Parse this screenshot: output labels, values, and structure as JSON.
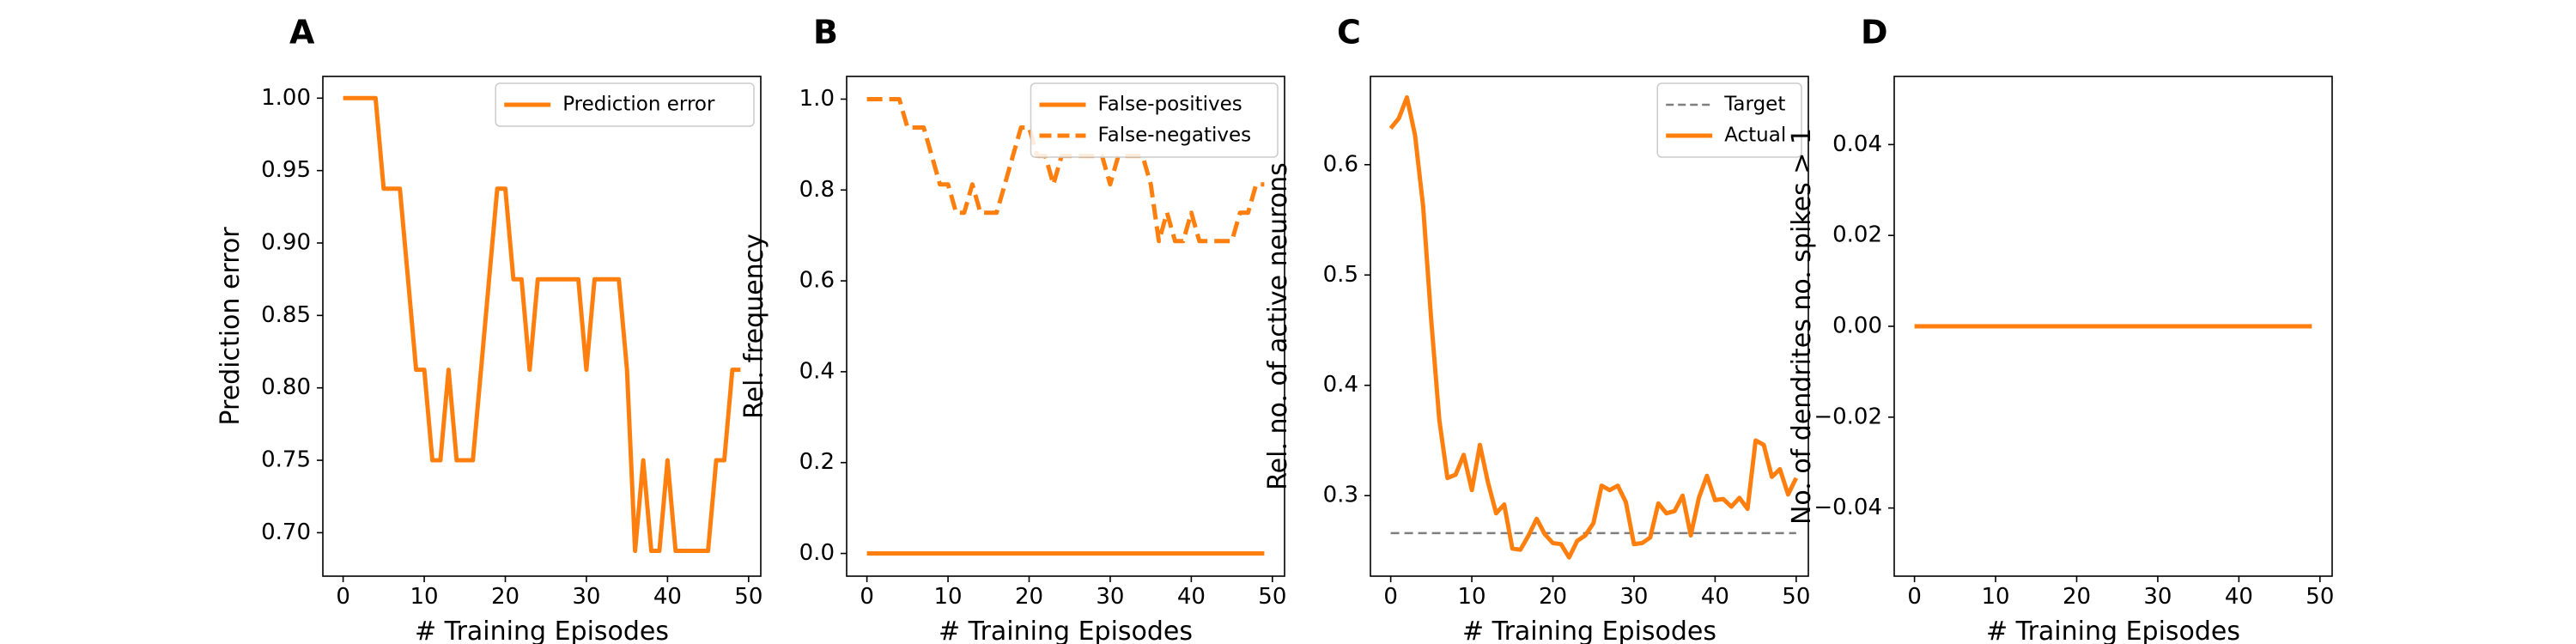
{
  "colors": {
    "series": "#ff7f0e",
    "target": "#7f7f7f",
    "frame": "#000000"
  },
  "chart_data": [
    {
      "type": "line",
      "panel_label": "A",
      "xlabel": "# Training Episodes",
      "ylabel": "Prediction error",
      "xlim": [
        -2.5,
        51.5
      ],
      "ylim": [
        0.67,
        1.015
      ],
      "xticks": [
        0,
        10,
        20,
        30,
        40,
        50
      ],
      "yticks": [
        0.7,
        0.75,
        0.8,
        0.85,
        0.9,
        0.95,
        1.0
      ],
      "ytick_decimals": 2,
      "legend": {
        "position": "top-right"
      },
      "series": [
        {
          "name": "Prediction error",
          "style": "solid",
          "x": [
            0,
            1,
            2,
            3,
            4,
            5,
            6,
            7,
            8,
            9,
            10,
            11,
            12,
            13,
            14,
            15,
            16,
            17,
            18,
            19,
            20,
            21,
            22,
            23,
            24,
            25,
            26,
            27,
            28,
            29,
            30,
            31,
            32,
            33,
            34,
            35,
            36,
            37,
            38,
            39,
            40,
            41,
            42,
            43,
            44,
            45,
            46,
            47,
            48,
            49
          ],
          "y": [
            1.0,
            1.0,
            1.0,
            1.0,
            1.0,
            0.9375,
            0.9375,
            0.9375,
            0.875,
            0.8125,
            0.8125,
            0.75,
            0.75,
            0.8125,
            0.75,
            0.75,
            0.75,
            0.8125,
            0.875,
            0.9375,
            0.9375,
            0.875,
            0.875,
            0.8125,
            0.875,
            0.875,
            0.875,
            0.875,
            0.875,
            0.875,
            0.8125,
            0.875,
            0.875,
            0.875,
            0.875,
            0.8125,
            0.6875,
            0.75,
            0.6875,
            0.6875,
            0.75,
            0.6875,
            0.6875,
            0.6875,
            0.6875,
            0.6875,
            0.75,
            0.75,
            0.8125,
            0.8125
          ]
        }
      ]
    },
    {
      "type": "line",
      "panel_label": "B",
      "xlabel": "# Training Episodes",
      "ylabel": "Rel. frequency",
      "xlim": [
        -2.5,
        51.5
      ],
      "ylim": [
        -0.05,
        1.05
      ],
      "xticks": [
        0,
        10,
        20,
        30,
        40,
        50
      ],
      "yticks": [
        0.0,
        0.2,
        0.4,
        0.6,
        0.8,
        1.0
      ],
      "ytick_decimals": 1,
      "legend": {
        "position": "top-right"
      },
      "series": [
        {
          "name": "False-positives",
          "style": "solid",
          "x": [
            0,
            49
          ],
          "y": [
            0.0,
            0.0
          ]
        },
        {
          "name": "False-negatives",
          "style": "dashed",
          "x": [
            0,
            1,
            2,
            3,
            4,
            5,
            6,
            7,
            8,
            9,
            10,
            11,
            12,
            13,
            14,
            15,
            16,
            17,
            18,
            19,
            20,
            21,
            22,
            23,
            24,
            25,
            26,
            27,
            28,
            29,
            30,
            31,
            32,
            33,
            34,
            35,
            36,
            37,
            38,
            39,
            40,
            41,
            42,
            43,
            44,
            45,
            46,
            47,
            48,
            49
          ],
          "y": [
            1.0,
            1.0,
            1.0,
            1.0,
            1.0,
            0.9375,
            0.9375,
            0.9375,
            0.875,
            0.8125,
            0.8125,
            0.75,
            0.75,
            0.8125,
            0.75,
            0.75,
            0.75,
            0.8125,
            0.875,
            0.9375,
            0.9375,
            0.875,
            0.875,
            0.8125,
            0.875,
            0.875,
            0.875,
            0.875,
            0.875,
            0.875,
            0.8125,
            0.875,
            0.875,
            0.875,
            0.875,
            0.8125,
            0.6875,
            0.75,
            0.6875,
            0.6875,
            0.75,
            0.6875,
            0.6875,
            0.6875,
            0.6875,
            0.6875,
            0.75,
            0.75,
            0.8125,
            0.8125
          ]
        }
      ]
    },
    {
      "type": "line",
      "panel_label": "C",
      "xlabel": "# Training Episodes",
      "ylabel": "Rel. no. of active neurons",
      "xlim": [
        -2.5,
        51.5
      ],
      "ylim": [
        0.227,
        0.68
      ],
      "xticks": [
        0,
        10,
        20,
        30,
        40,
        50
      ],
      "yticks": [
        0.3,
        0.4,
        0.5,
        0.6
      ],
      "ytick_decimals": 1,
      "legend": {
        "position": "top-right"
      },
      "series": [
        {
          "name": "Target",
          "style": "dashed-thin",
          "x": [
            0,
            50
          ],
          "y": [
            0.266,
            0.266
          ]
        },
        {
          "name": "Actual",
          "style": "solid",
          "x": [
            0,
            1,
            2,
            3,
            4,
            5,
            6,
            7,
            8,
            9,
            10,
            11,
            12,
            13,
            14,
            15,
            16,
            17,
            18,
            19,
            20,
            21,
            22,
            23,
            24,
            25,
            26,
            27,
            28,
            29,
            30,
            31,
            32,
            33,
            34,
            35,
            36,
            37,
            38,
            39,
            40,
            41,
            42,
            43,
            44,
            45,
            46,
            47,
            48,
            49,
            50
          ],
          "y": [
            0.633,
            0.642,
            0.661,
            0.627,
            0.562,
            0.459,
            0.368,
            0.316,
            0.319,
            0.337,
            0.305,
            0.346,
            0.312,
            0.284,
            0.292,
            0.252,
            0.251,
            0.264,
            0.279,
            0.265,
            0.257,
            0.256,
            0.244,
            0.259,
            0.264,
            0.275,
            0.309,
            0.305,
            0.309,
            0.294,
            0.256,
            0.257,
            0.262,
            0.293,
            0.284,
            0.286,
            0.3,
            0.264,
            0.298,
            0.318,
            0.296,
            0.297,
            0.29,
            0.298,
            0.288,
            0.35,
            0.346,
            0.317,
            0.324,
            0.301,
            0.316
          ]
        }
      ]
    },
    {
      "type": "line",
      "panel_label": "D",
      "xlabel": "# Training Episodes",
      "ylabel": "No. of dendrites no. spikes > 1",
      "xlim": [
        -2.5,
        51.5
      ],
      "ylim": [
        -0.055,
        0.055
      ],
      "xticks": [
        0,
        10,
        20,
        30,
        40,
        50
      ],
      "yticks": [
        -0.04,
        -0.02,
        0.0,
        0.02,
        0.04
      ],
      "ytick_decimals": 2,
      "legend": null,
      "series": [
        {
          "name": "",
          "style": "solid",
          "x": [
            0,
            49
          ],
          "y": [
            0.0,
            0.0
          ]
        }
      ]
    }
  ]
}
